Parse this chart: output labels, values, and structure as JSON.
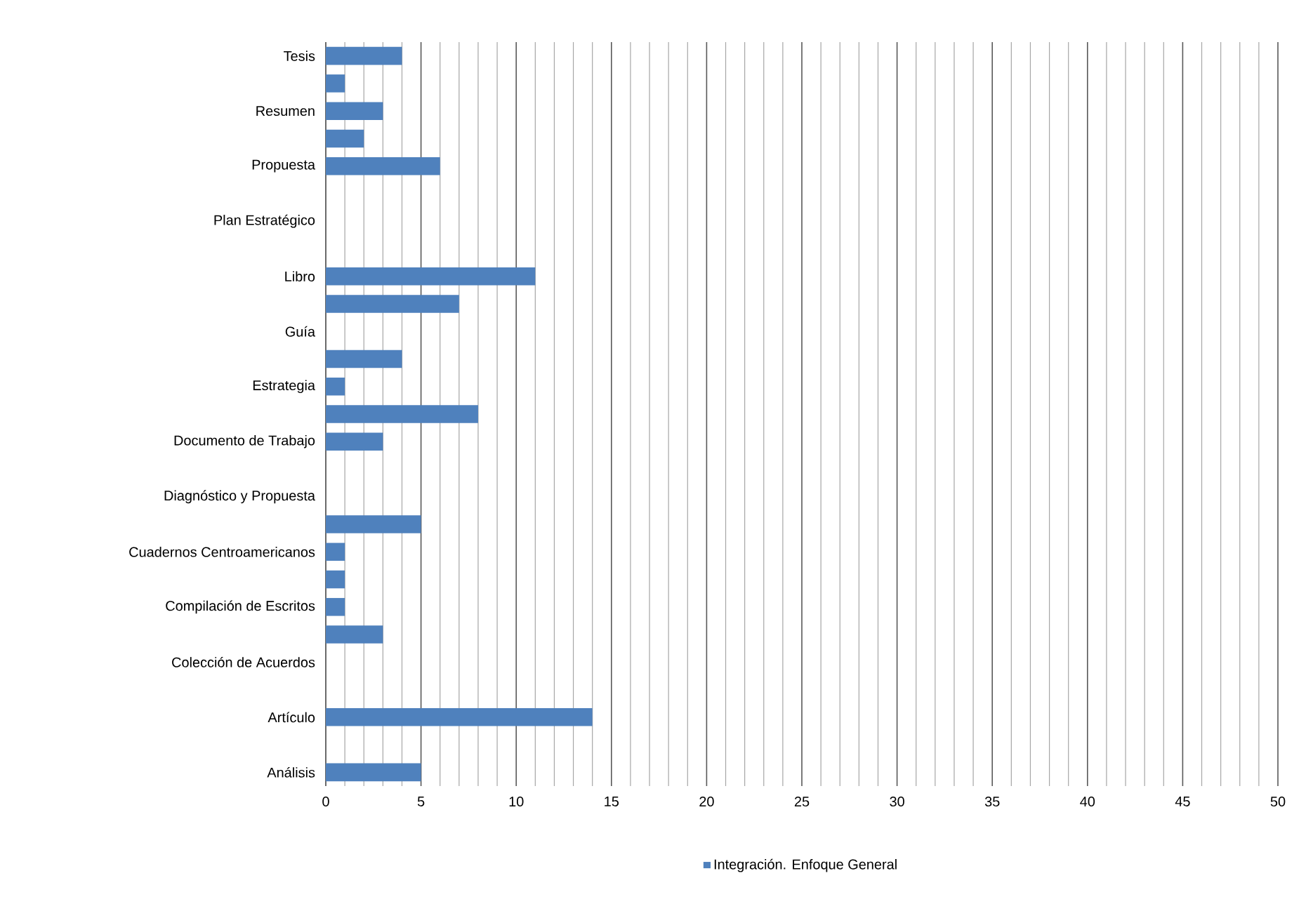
{
  "chart_data": {
    "type": "bar",
    "orientation": "horizontal",
    "categories": [
      "Tesis",
      null,
      "Resumen",
      null,
      "Propuesta",
      null,
      "Plan Estratégico",
      null,
      "Libro",
      null,
      "Guía",
      null,
      "Estrategia",
      null,
      "Documento de Trabajo",
      null,
      "Diagnóstico y Propuesta",
      null,
      "Cuadernos Centroamericanos",
      null,
      "Compilación de Escritos",
      null,
      "Colección de Acuerdos",
      null,
      "Artículo",
      null,
      "Análisis"
    ],
    "series": [
      {
        "name": "Integración. Enfoque General",
        "color": "#4f81bd",
        "values": [
          4,
          1,
          3,
          2,
          6,
          0,
          0,
          0,
          11,
          7,
          0,
          4,
          1,
          8,
          3,
          0,
          0,
          5,
          1,
          1,
          1,
          3,
          0,
          0,
          14,
          0,
          5
        ]
      }
    ],
    "xlim": [
      0,
      50
    ],
    "xticks": [
      0,
      5,
      10,
      15,
      20,
      25,
      30,
      35,
      40,
      45,
      50
    ],
    "grid": "x",
    "legend": "bottom"
  }
}
